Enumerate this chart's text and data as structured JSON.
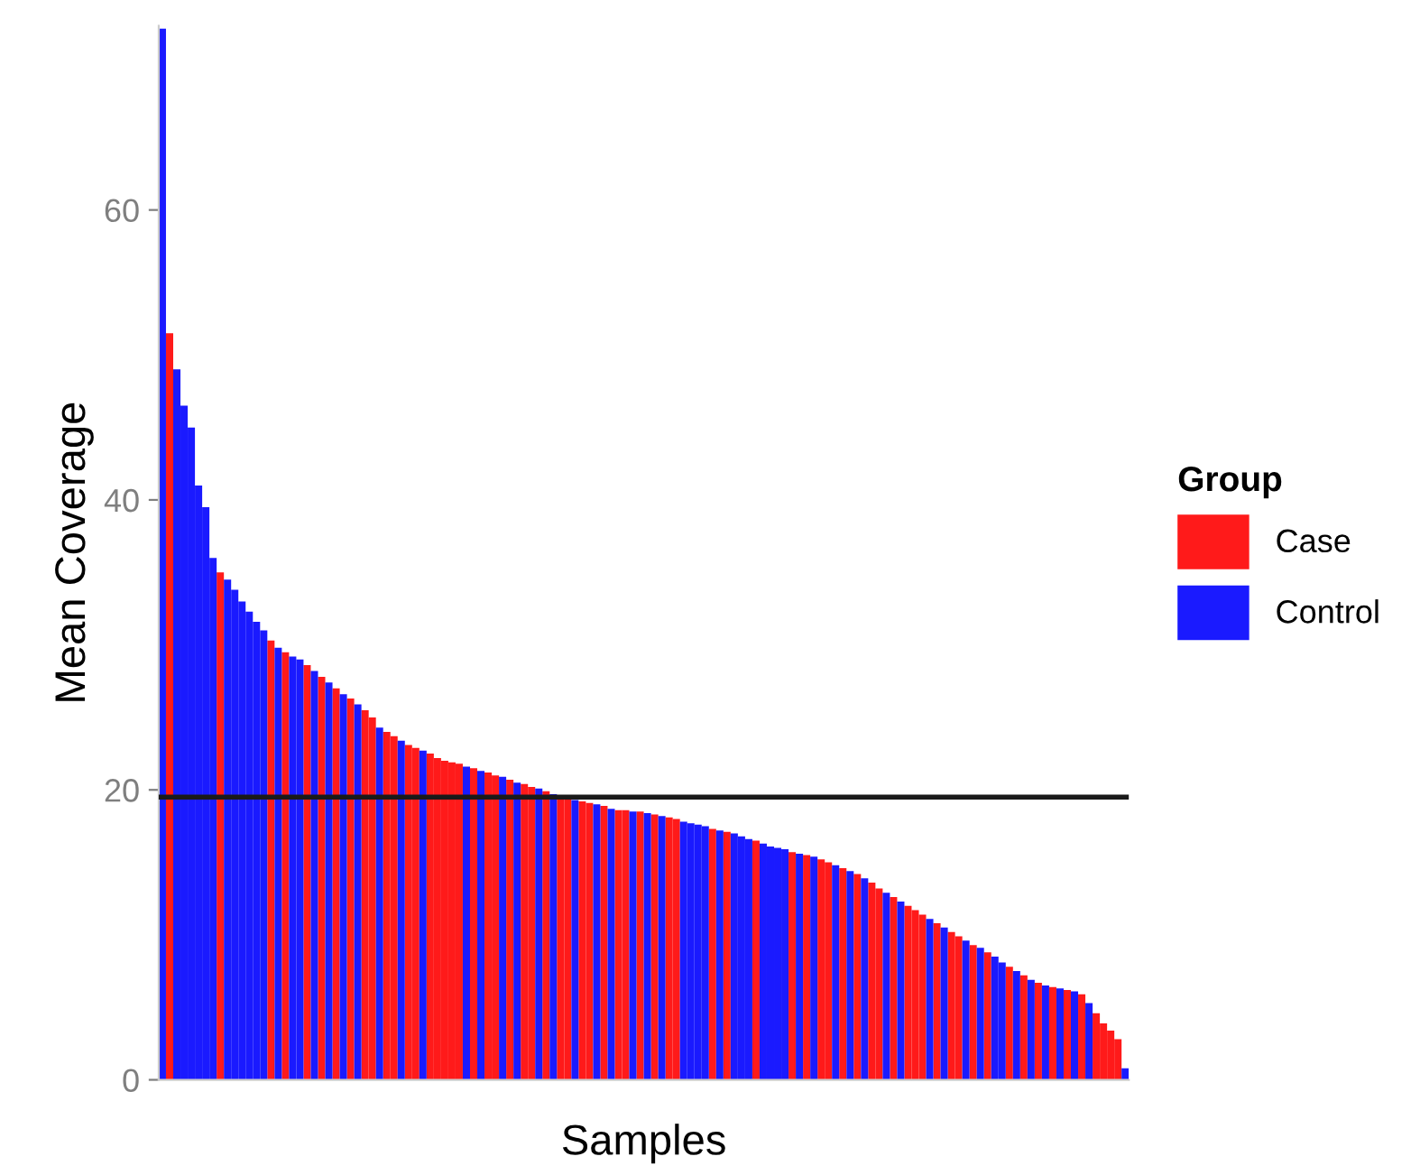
{
  "chart_data": {
    "type": "bar",
    "xlabel": "Samples",
    "ylabel": "Mean Coverage",
    "legend_title": "Group",
    "legend": "right",
    "grid": false,
    "ylim": [
      0,
      72.7
    ],
    "yticks": [
      0,
      20,
      40,
      60
    ],
    "categories": [
      null,
      null,
      null,
      null,
      null,
      null,
      null,
      null,
      null,
      null,
      null,
      null,
      null,
      null,
      null,
      null,
      null,
      null,
      null,
      null,
      null,
      null,
      null,
      null,
      null,
      null,
      null,
      null,
      null,
      null,
      null,
      null,
      null,
      null,
      null,
      null,
      null,
      null,
      null,
      null,
      null,
      null,
      null,
      null,
      null,
      null,
      null,
      null,
      null,
      null,
      null,
      null,
      null,
      null,
      null,
      null,
      null,
      null,
      null,
      null,
      null,
      null,
      null,
      null,
      null,
      null,
      null,
      null,
      null,
      null,
      null,
      null,
      null,
      null,
      null,
      null,
      null,
      null,
      null,
      null,
      null,
      null,
      null,
      null,
      null,
      null,
      null,
      null,
      null,
      null,
      null,
      null,
      null,
      null,
      null,
      null,
      null,
      null,
      null,
      null,
      null,
      null,
      null,
      null,
      null,
      null,
      null,
      null,
      null,
      null,
      null,
      null,
      null,
      null,
      null,
      null,
      null,
      null,
      null,
      null,
      null,
      null,
      null,
      null,
      null,
      null,
      null,
      null,
      null,
      null,
      null,
      null,
      null,
      null
    ],
    "ref_lines": [
      {
        "axis": "y",
        "value": 19.5,
        "color": "#1a1a1a"
      }
    ],
    "series": [
      {
        "name": "Case",
        "color": "#ff1a1a",
        "values": [
          null,
          51.5,
          null,
          null,
          null,
          null,
          null,
          null,
          35,
          null,
          null,
          null,
          null,
          null,
          null,
          30.3,
          null,
          29.5,
          null,
          null,
          28.6,
          null,
          27.8,
          null,
          27,
          null,
          26.3,
          null,
          25.5,
          25,
          null,
          24,
          23.7,
          null,
          23.1,
          22.9,
          null,
          22.5,
          22.2,
          22,
          21.9,
          21.8,
          null,
          21.5,
          null,
          21.2,
          21,
          null,
          20.7,
          null,
          20.4,
          20.2,
          null,
          19.9,
          null,
          19.5,
          19.4,
          null,
          19.2,
          19.1,
          null,
          18.9,
          null,
          18.6,
          18.6,
          null,
          18.5,
          null,
          18.3,
          null,
          18.1,
          18,
          null,
          null,
          null,
          null,
          17.3,
          null,
          17.1,
          null,
          null,
          null,
          16.5,
          null,
          null,
          null,
          null,
          15.7,
          null,
          15.5,
          null,
          15.2,
          15,
          null,
          14.6,
          null,
          14.2,
          null,
          13.6,
          13.2,
          null,
          12.6,
          null,
          12,
          11.7,
          11.4,
          null,
          10.8,
          null,
          10.2,
          9.9,
          null,
          9.3,
          null,
          8.8,
          null,
          null,
          7.8,
          null,
          7.2,
          null,
          6.7,
          null,
          6.4,
          null,
          6.2,
          null,
          5.9,
          null,
          4.6,
          3.9,
          3.4,
          2.8,
          null
        ]
      },
      {
        "name": "Control",
        "color": "#1a1aff",
        "values": [
          72.5,
          null,
          49,
          46.5,
          45,
          41,
          39.5,
          36,
          null,
          34.5,
          33.8,
          33,
          32.3,
          31.6,
          31,
          null,
          29.8,
          null,
          29.2,
          29,
          null,
          28.2,
          null,
          27.4,
          null,
          26.6,
          null,
          25.9,
          null,
          null,
          24.3,
          null,
          null,
          23.4,
          null,
          null,
          22.7,
          null,
          null,
          null,
          null,
          null,
          21.6,
          null,
          21.3,
          null,
          null,
          20.9,
          null,
          20.5,
          null,
          null,
          20.1,
          null,
          19.7,
          null,
          null,
          19.3,
          null,
          null,
          19,
          null,
          18.7,
          null,
          null,
          18.5,
          null,
          18.4,
          null,
          18.2,
          null,
          null,
          17.8,
          17.7,
          17.6,
          17.5,
          null,
          17.2,
          null,
          17,
          16.8,
          16.6,
          null,
          16.3,
          16.1,
          16,
          15.9,
          null,
          15.6,
          null,
          15.4,
          null,
          null,
          14.8,
          null,
          14.4,
          null,
          13.9,
          null,
          null,
          12.9,
          null,
          12.3,
          null,
          null,
          null,
          11.1,
          null,
          10.5,
          null,
          null,
          9.6,
          null,
          9.1,
          null,
          8.5,
          8.1,
          null,
          7.5,
          null,
          6.9,
          null,
          6.5,
          null,
          6.3,
          null,
          6.1,
          null,
          5.3,
          null,
          null,
          null,
          null,
          0.8
        ]
      }
    ]
  }
}
